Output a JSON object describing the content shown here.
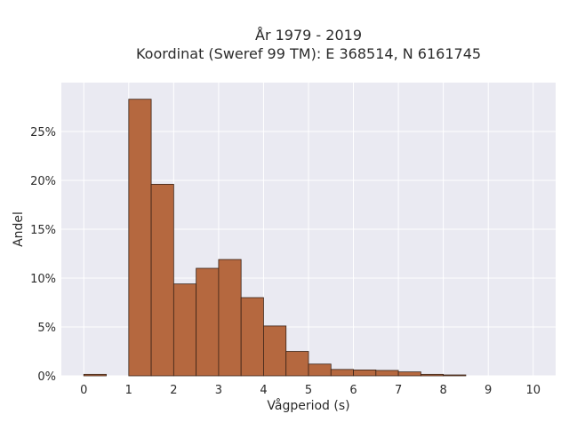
{
  "chart_data": {
    "type": "bar",
    "title_line1": "År 1979 - 2019",
    "title_line2": "Koordinat (Sweref 99 TM): E 368514, N 6161745",
    "xlabel": "Vågperiod (s)",
    "ylabel": "Andel",
    "xlim": [
      -0.5,
      10.5
    ],
    "ylim": [
      0,
      0.3
    ],
    "x_ticks": [
      0,
      1,
      2,
      3,
      4,
      5,
      6,
      7,
      8,
      9,
      10
    ],
    "x_tick_labels": [
      "0",
      "1",
      "2",
      "3",
      "4",
      "5",
      "6",
      "7",
      "8",
      "9",
      "10"
    ],
    "y_ticks": [
      0,
      0.05,
      0.1,
      0.15,
      0.2,
      0.25
    ],
    "y_tick_labels": [
      "0%",
      "5%",
      "10%",
      "15%",
      "20%",
      "25%"
    ],
    "bin_width": 0.5,
    "bins": [
      {
        "start": 0.0,
        "value": 0.0015
      },
      {
        "start": 0.5,
        "value": 0.0
      },
      {
        "start": 1.0,
        "value": 0.283
      },
      {
        "start": 1.5,
        "value": 0.196
      },
      {
        "start": 2.0,
        "value": 0.094
      },
      {
        "start": 2.5,
        "value": 0.11
      },
      {
        "start": 3.0,
        "value": 0.119
      },
      {
        "start": 3.5,
        "value": 0.08
      },
      {
        "start": 4.0,
        "value": 0.051
      },
      {
        "start": 4.5,
        "value": 0.025
      },
      {
        "start": 5.0,
        "value": 0.012
      },
      {
        "start": 5.5,
        "value": 0.0065
      },
      {
        "start": 6.0,
        "value": 0.006
      },
      {
        "start": 6.5,
        "value": 0.0055
      },
      {
        "start": 7.0,
        "value": 0.004
      },
      {
        "start": 7.5,
        "value": 0.0015
      },
      {
        "start": 8.0,
        "value": 0.0005
      }
    ],
    "grid": true,
    "colors": {
      "bar_fill": "#b5683f",
      "bar_edge": "#3a2418",
      "plot_background": "#eaeaf2",
      "grid": "#ffffff"
    }
  }
}
